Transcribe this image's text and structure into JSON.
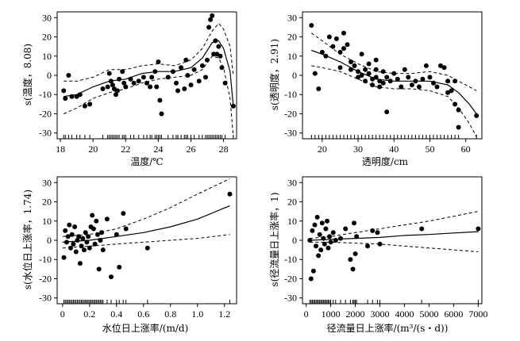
{
  "chart_data": [
    {
      "type": "scatter",
      "xlabel": "温度/℃",
      "ylabel": "s(温度，8.08)",
      "xlim": [
        17.8,
        28.8
      ],
      "ylim": [
        -33,
        33
      ],
      "xticks": [
        18,
        20,
        22,
        24,
        26,
        28
      ],
      "yticks": [
        -30,
        -20,
        -10,
        0,
        10,
        20,
        30
      ],
      "points": [
        [
          18.2,
          -8
        ],
        [
          18.3,
          -12
        ],
        [
          18.5,
          0
        ],
        [
          18.7,
          -11
        ],
        [
          19.0,
          -11
        ],
        [
          19.2,
          -10
        ],
        [
          19.5,
          -16
        ],
        [
          19.8,
          -15
        ],
        [
          20.6,
          -7
        ],
        [
          20.9,
          -6
        ],
        [
          21.0,
          1
        ],
        [
          21.1,
          -3
        ],
        [
          21.2,
          -5
        ],
        [
          21.3,
          -7
        ],
        [
          21.4,
          -10
        ],
        [
          21.5,
          -8
        ],
        [
          21.6,
          -2
        ],
        [
          21.8,
          2
        ],
        [
          21.9,
          -4
        ],
        [
          22.0,
          -6
        ],
        [
          22.3,
          -2
        ],
        [
          22.5,
          -4
        ],
        [
          22.8,
          -3
        ],
        [
          23.1,
          -1
        ],
        [
          23.3,
          -4
        ],
        [
          23.5,
          -6
        ],
        [
          23.6,
          -1
        ],
        [
          23.8,
          2
        ],
        [
          23.9,
          -6
        ],
        [
          24.0,
          7
        ],
        [
          24.1,
          -13
        ],
        [
          24.2,
          -20
        ],
        [
          24.6,
          -1
        ],
        [
          24.9,
          2
        ],
        [
          25.1,
          -4
        ],
        [
          25.2,
          -8
        ],
        [
          25.4,
          4
        ],
        [
          25.6,
          -7
        ],
        [
          25.7,
          8
        ],
        [
          25.8,
          0
        ],
        [
          26.0,
          -5
        ],
        [
          26.2,
          3
        ],
        [
          26.5,
          -3
        ],
        [
          26.7,
          5
        ],
        [
          26.9,
          -1
        ],
        [
          27.0,
          8
        ],
        [
          27.1,
          25
        ],
        [
          27.2,
          29
        ],
        [
          27.3,
          31
        ],
        [
          27.4,
          11
        ],
        [
          27.5,
          18
        ],
        [
          27.6,
          11
        ],
        [
          27.7,
          15
        ],
        [
          27.8,
          10
        ],
        [
          27.9,
          4
        ],
        [
          28.1,
          -4
        ],
        [
          28.6,
          -16
        ]
      ],
      "fit": [
        [
          18.2,
          -11
        ],
        [
          19,
          -10
        ],
        [
          20,
          -6
        ],
        [
          21,
          -3
        ],
        [
          22,
          -2
        ],
        [
          23,
          1
        ],
        [
          24,
          2
        ],
        [
          25,
          2
        ],
        [
          26,
          4
        ],
        [
          26.7,
          9
        ],
        [
          27.3,
          17
        ],
        [
          27.7,
          18
        ],
        [
          28.0,
          14
        ],
        [
          28.4,
          2
        ],
        [
          28.6,
          -16
        ]
      ],
      "ci_upper": [
        [
          18.2,
          -3
        ],
        [
          19,
          -3
        ],
        [
          20,
          -1
        ],
        [
          21,
          3
        ],
        [
          22,
          3
        ],
        [
          23,
          5
        ],
        [
          24,
          6
        ],
        [
          25,
          5
        ],
        [
          26,
          8
        ],
        [
          26.7,
          14
        ],
        [
          27.3,
          23
        ],
        [
          27.7,
          27
        ],
        [
          28.0,
          24
        ],
        [
          28.4,
          15
        ],
        [
          28.6,
          0
        ]
      ],
      "ci_lower": [
        [
          18.2,
          -20
        ],
        [
          19,
          -17
        ],
        [
          20,
          -12
        ],
        [
          21,
          -9
        ],
        [
          22,
          -7
        ],
        [
          23,
          -4
        ],
        [
          24,
          -2
        ],
        [
          25,
          -1
        ],
        [
          26,
          0
        ],
        [
          26.7,
          3
        ],
        [
          27.3,
          10
        ],
        [
          27.7,
          9
        ],
        [
          28.0,
          4
        ],
        [
          28.4,
          -12
        ],
        [
          28.6,
          -32
        ]
      ],
      "rug": [
        18.2,
        18.3,
        18.5,
        18.7,
        19.0,
        19.2,
        19.5,
        19.8,
        20.6,
        20.9,
        21.0,
        21.1,
        21.2,
        21.3,
        21.4,
        21.5,
        21.6,
        21.8,
        21.9,
        22.0,
        22.3,
        22.5,
        22.8,
        23.1,
        23.3,
        23.5,
        23.6,
        23.8,
        23.9,
        24.0,
        24.1,
        24.2,
        24.6,
        24.9,
        25.1,
        25.2,
        25.4,
        25.6,
        25.7,
        25.8,
        26.0,
        26.2,
        26.5,
        26.7,
        26.9,
        27.0,
        27.1,
        27.2,
        27.3,
        27.4,
        27.5,
        27.6,
        27.7,
        27.8,
        27.9,
        28.1,
        28.6
      ]
    },
    {
      "type": "scatter",
      "xlabel": "透明度/cm",
      "ylabel": "s(透明度，2.91)",
      "xlim": [
        14.5,
        64.5
      ],
      "ylim": [
        -33,
        33
      ],
      "xticks": [
        20,
        30,
        40,
        50,
        60
      ],
      "yticks": [
        -30,
        -20,
        -10,
        0,
        10,
        20,
        30
      ],
      "points": [
        [
          17,
          26
        ],
        [
          18,
          1
        ],
        [
          19,
          -7
        ],
        [
          20,
          12
        ],
        [
          21,
          10
        ],
        [
          22,
          20
        ],
        [
          23,
          15
        ],
        [
          24,
          19
        ],
        [
          25,
          12
        ],
        [
          25,
          4
        ],
        [
          26,
          22
        ],
        [
          26,
          14
        ],
        [
          27,
          16
        ],
        [
          28,
          7
        ],
        [
          28,
          3
        ],
        [
          29,
          5
        ],
        [
          30,
          2
        ],
        [
          30,
          -1
        ],
        [
          31,
          0
        ],
        [
          31,
          11
        ],
        [
          32,
          3
        ],
        [
          32,
          -3
        ],
        [
          33,
          6
        ],
        [
          33,
          1
        ],
        [
          34,
          -2
        ],
        [
          34,
          -5
        ],
        [
          35,
          -1
        ],
        [
          35,
          3
        ],
        [
          35,
          8
        ],
        [
          36,
          -6
        ],
        [
          36,
          -3
        ],
        [
          37,
          2
        ],
        [
          37,
          -4
        ],
        [
          38,
          -19
        ],
        [
          38,
          -1
        ],
        [
          39,
          -3
        ],
        [
          40,
          1
        ],
        [
          41,
          -2
        ],
        [
          42,
          -6
        ],
        [
          43,
          3
        ],
        [
          44,
          -1
        ],
        [
          45,
          -5
        ],
        [
          46,
          -3
        ],
        [
          47,
          -6
        ],
        [
          48,
          -2
        ],
        [
          49,
          5
        ],
        [
          50,
          -1
        ],
        [
          51,
          -4
        ],
        [
          52,
          -6
        ],
        [
          53,
          5
        ],
        [
          54,
          4
        ],
        [
          55,
          -3
        ],
        [
          55,
          -9
        ],
        [
          56,
          -8
        ],
        [
          57,
          -3
        ],
        [
          57,
          -15
        ],
        [
          58,
          -27
        ],
        [
          58,
          -18
        ],
        [
          63,
          -21
        ]
      ],
      "fit": [
        [
          17,
          13
        ],
        [
          20,
          11
        ],
        [
          25,
          7
        ],
        [
          30,
          2
        ],
        [
          35,
          -2
        ],
        [
          40,
          -3
        ],
        [
          45,
          -3
        ],
        [
          50,
          -3
        ],
        [
          55,
          -5
        ],
        [
          58,
          -9
        ],
        [
          61,
          -15
        ],
        [
          63,
          -20
        ]
      ],
      "ci_upper": [
        [
          17,
          22
        ],
        [
          20,
          18
        ],
        [
          25,
          11
        ],
        [
          30,
          6
        ],
        [
          35,
          2
        ],
        [
          40,
          1
        ],
        [
          45,
          1
        ],
        [
          50,
          2
        ],
        [
          55,
          0
        ],
        [
          58,
          -3
        ],
        [
          61,
          -6
        ],
        [
          63,
          -8
        ]
      ],
      "ci_lower": [
        [
          17,
          5
        ],
        [
          20,
          4
        ],
        [
          25,
          2
        ],
        [
          30,
          -2
        ],
        [
          35,
          -6
        ],
        [
          40,
          -7
        ],
        [
          45,
          -7
        ],
        [
          50,
          -8
        ],
        [
          55,
          -11
        ],
        [
          58,
          -17
        ],
        [
          61,
          -25
        ],
        [
          63,
          -32
        ]
      ],
      "rug": [
        17,
        18,
        19,
        20,
        21,
        22,
        23,
        24,
        25,
        26,
        27,
        28,
        29,
        30,
        31,
        32,
        33,
        34,
        35,
        36,
        37,
        38,
        39,
        40,
        41,
        42,
        43,
        44,
        45,
        46,
        47,
        48,
        49,
        50,
        51,
        52,
        53,
        54,
        55,
        56,
        57,
        58,
        63
      ]
    },
    {
      "type": "scatter",
      "xlabel": "水位日上涨率/(m/d)",
      "ylabel": "s(水位日上涨率，1.74)",
      "xlim": [
        -0.04,
        1.29
      ],
      "ylim": [
        -33,
        33
      ],
      "xticks": [
        0,
        0.2,
        0.4,
        0.6,
        0.8,
        1,
        1.2
      ],
      "xtick_labels": [
        "0",
        "0.2",
        "0.4",
        "0.6",
        "0.8",
        "1.0",
        "1.2"
      ],
      "yticks": [
        -30,
        -20,
        -10,
        0,
        10,
        20,
        30
      ],
      "points": [
        [
          0.01,
          -9
        ],
        [
          0.02,
          5
        ],
        [
          0.03,
          -1
        ],
        [
          0.04,
          2
        ],
        [
          0.05,
          8
        ],
        [
          0.06,
          -4
        ],
        [
          0.07,
          3
        ],
        [
          0.08,
          -2
        ],
        [
          0.09,
          7
        ],
        [
          0.1,
          -6
        ],
        [
          0.11,
          0
        ],
        [
          0.12,
          2
        ],
        [
          0.13,
          -12
        ],
        [
          0.14,
          -3
        ],
        [
          0.15,
          1
        ],
        [
          0.16,
          -5
        ],
        [
          0.17,
          4
        ],
        [
          0.18,
          -1
        ],
        [
          0.19,
          2
        ],
        [
          0.2,
          -4
        ],
        [
          0.21,
          7
        ],
        [
          0.22,
          13
        ],
        [
          0.23,
          6
        ],
        [
          0.24,
          -2
        ],
        [
          0.25,
          10
        ],
        [
          0.26,
          3
        ],
        [
          0.27,
          -15
        ],
        [
          0.28,
          0
        ],
        [
          0.29,
          4
        ],
        [
          0.3,
          -5
        ],
        [
          0.33,
          11
        ],
        [
          0.36,
          -19
        ],
        [
          0.4,
          3
        ],
        [
          0.42,
          -14
        ],
        [
          0.45,
          14
        ],
        [
          0.47,
          6
        ],
        [
          0.63,
          -4
        ],
        [
          1.24,
          24
        ]
      ],
      "fit": [
        [
          0,
          -1
        ],
        [
          0.2,
          0
        ],
        [
          0.4,
          2
        ],
        [
          0.6,
          4
        ],
        [
          0.8,
          7
        ],
        [
          1.0,
          11
        ],
        [
          1.24,
          18
        ]
      ],
      "ci_upper": [
        [
          0,
          2
        ],
        [
          0.2,
          3
        ],
        [
          0.4,
          6
        ],
        [
          0.6,
          11
        ],
        [
          0.8,
          17
        ],
        [
          1.0,
          24
        ],
        [
          1.24,
          32
        ]
      ],
      "ci_lower": [
        [
          0,
          -4
        ],
        [
          0.2,
          -3
        ],
        [
          0.4,
          -2
        ],
        [
          0.6,
          -1
        ],
        [
          0.8,
          0
        ],
        [
          1.0,
          1
        ],
        [
          1.24,
          3
        ]
      ],
      "rug": [
        0.01,
        0.02,
        0.03,
        0.04,
        0.05,
        0.06,
        0.07,
        0.08,
        0.09,
        0.1,
        0.11,
        0.12,
        0.13,
        0.14,
        0.15,
        0.16,
        0.17,
        0.18,
        0.19,
        0.2,
        0.21,
        0.22,
        0.23,
        0.24,
        0.25,
        0.26,
        0.27,
        0.28,
        0.29,
        0.3,
        0.33,
        0.36,
        0.4,
        0.42,
        0.45,
        0.47,
        0.63,
        1.24
      ]
    },
    {
      "type": "scatter",
      "xlabel": "径流量日上涨率/(m³/(s・d))",
      "ylabel": "s(径流量日上涨率，1)",
      "xlim": [
        -150,
        7150
      ],
      "ylim": [
        -33,
        33
      ],
      "xticks": [
        0,
        1000,
        2000,
        3000,
        4000,
        5000,
        6000,
        7000
      ],
      "yticks": [
        -30,
        -20,
        -10,
        0,
        10,
        20,
        30
      ],
      "points": [
        [
          150,
          0
        ],
        [
          200,
          -20
        ],
        [
          250,
          5
        ],
        [
          300,
          -16
        ],
        [
          350,
          8
        ],
        [
          400,
          -3
        ],
        [
          450,
          12
        ],
        [
          500,
          -8
        ],
        [
          550,
          3
        ],
        [
          600,
          -5
        ],
        [
          650,
          9
        ],
        [
          700,
          1
        ],
        [
          750,
          -2
        ],
        [
          800,
          6
        ],
        [
          850,
          10
        ],
        [
          900,
          -4
        ],
        [
          950,
          2
        ],
        [
          1000,
          -1
        ],
        [
          1100,
          4
        ],
        [
          1200,
          0
        ],
        [
          1400,
          1
        ],
        [
          1600,
          6
        ],
        [
          1800,
          -10
        ],
        [
          1900,
          -15
        ],
        [
          1950,
          9
        ],
        [
          2000,
          -7
        ],
        [
          2050,
          2
        ],
        [
          2500,
          -3
        ],
        [
          2700,
          5
        ],
        [
          2900,
          4
        ],
        [
          3000,
          -2
        ],
        [
          4700,
          6
        ],
        [
          7000,
          6
        ]
      ],
      "fit": [
        [
          150,
          0
        ],
        [
          1000,
          0.5
        ],
        [
          2000,
          1
        ],
        [
          3000,
          1.5
        ],
        [
          4000,
          2.5
        ],
        [
          5000,
          3
        ],
        [
          6000,
          3.8
        ],
        [
          7000,
          4.5
        ]
      ],
      "ci_upper": [
        [
          150,
          1
        ],
        [
          1000,
          2
        ],
        [
          2000,
          4
        ],
        [
          3000,
          6
        ],
        [
          4000,
          8
        ],
        [
          5000,
          10
        ],
        [
          6000,
          12.5
        ],
        [
          7000,
          15
        ]
      ],
      "ci_lower": [
        [
          150,
          -1
        ],
        [
          1000,
          -1
        ],
        [
          2000,
          -1.5
        ],
        [
          3000,
          -2
        ],
        [
          4000,
          -3
        ],
        [
          5000,
          -4
        ],
        [
          6000,
          -5
        ],
        [
          7000,
          -6
        ]
      ],
      "rug": [
        150,
        200,
        250,
        300,
        350,
        400,
        450,
        500,
        550,
        600,
        650,
        700,
        750,
        800,
        850,
        900,
        950,
        1000,
        1100,
        1200,
        1400,
        1600,
        1800,
        1900,
        1950,
        2000,
        2050,
        2500,
        2700,
        2900,
        3000,
        4700,
        7000
      ]
    }
  ]
}
